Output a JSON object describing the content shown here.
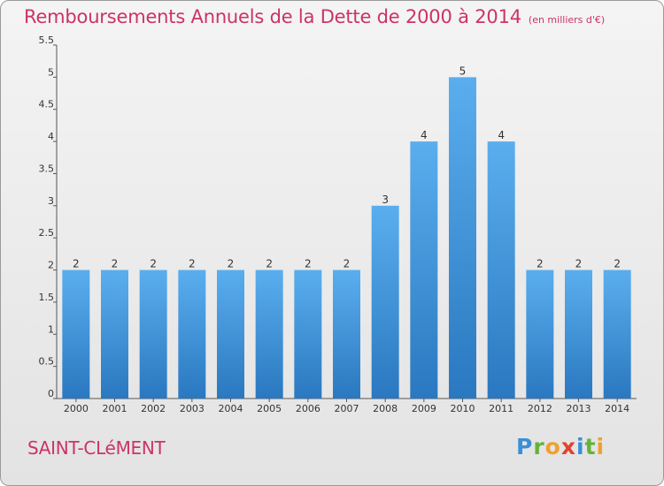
{
  "header": {
    "title": "Remboursements Annuels de la Dette de 2000 à 2014",
    "unit": "(en milliers d'€)"
  },
  "footer": {
    "commune": "SAINT-CLéMENT",
    "logo": "Proxiti"
  },
  "chart_data": {
    "type": "bar",
    "title": "Remboursements Annuels de la Dette de 2000 à 2014",
    "unit": "(en milliers d'€)",
    "categories": [
      "2000",
      "2001",
      "2002",
      "2003",
      "2004",
      "2005",
      "2006",
      "2007",
      "2008",
      "2009",
      "2010",
      "2011",
      "2012",
      "2013",
      "2014"
    ],
    "values": [
      2,
      2,
      2,
      2,
      2,
      2,
      2,
      2,
      3,
      4,
      5,
      4,
      2,
      2,
      2
    ],
    "y_ticks": [
      "0",
      "0.5",
      "1",
      "1.5",
      "2",
      "2.5",
      "3",
      "3.5",
      "4",
      "4.5",
      "5",
      "5.5"
    ],
    "ylim": [
      0,
      5.5
    ],
    "grid": false,
    "bar_color": "#4a9de0"
  }
}
